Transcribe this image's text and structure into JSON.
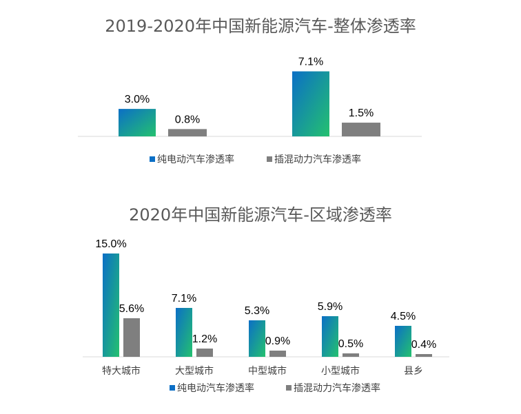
{
  "colors": {
    "ev_top": "#0b6fc6",
    "ev_bottom": "#24c16f",
    "phev": "#7f7f7f",
    "title": "#595959",
    "label": "#000000",
    "axis": "#d9d9d9"
  },
  "chart_data": [
    {
      "type": "bar",
      "title": "2019-2020年中国新能源汽车-整体渗透率",
      "categories": [
        "",
        ""
      ],
      "series": [
        {
          "name": "纯电动汽车渗透率",
          "values": [
            3.0,
            7.1
          ],
          "labels": [
            "3.0%",
            "7.1%"
          ]
        },
        {
          "name": "插混动力汽车渗透率",
          "values": [
            0.8,
            1.5
          ],
          "labels": [
            "0.8%",
            "1.5%"
          ]
        }
      ],
      "legend": "bottom",
      "grid": false,
      "ylim": [
        0,
        8
      ]
    },
    {
      "type": "bar",
      "title": "2020年中国新能源汽车-区域渗透率",
      "categories": [
        "特大城市",
        "大型城市",
        "中型城市",
        "小型城市",
        "县乡"
      ],
      "series": [
        {
          "name": "纯电动汽车渗透率",
          "values": [
            15.0,
            7.1,
            5.3,
            5.9,
            4.5
          ],
          "labels": [
            "15.0%",
            "7.1%",
            "5.3%",
            "5.9%",
            "4.5%"
          ]
        },
        {
          "name": "插混动力汽车渗透率",
          "values": [
            5.6,
            1.2,
            0.9,
            0.5,
            0.4
          ],
          "labels": [
            "5.6%",
            "1.2%",
            "0.9%",
            "0.5%",
            "0.4%"
          ]
        }
      ],
      "legend": "bottom",
      "grid": false,
      "ylim": [
        0,
        16
      ]
    }
  ]
}
